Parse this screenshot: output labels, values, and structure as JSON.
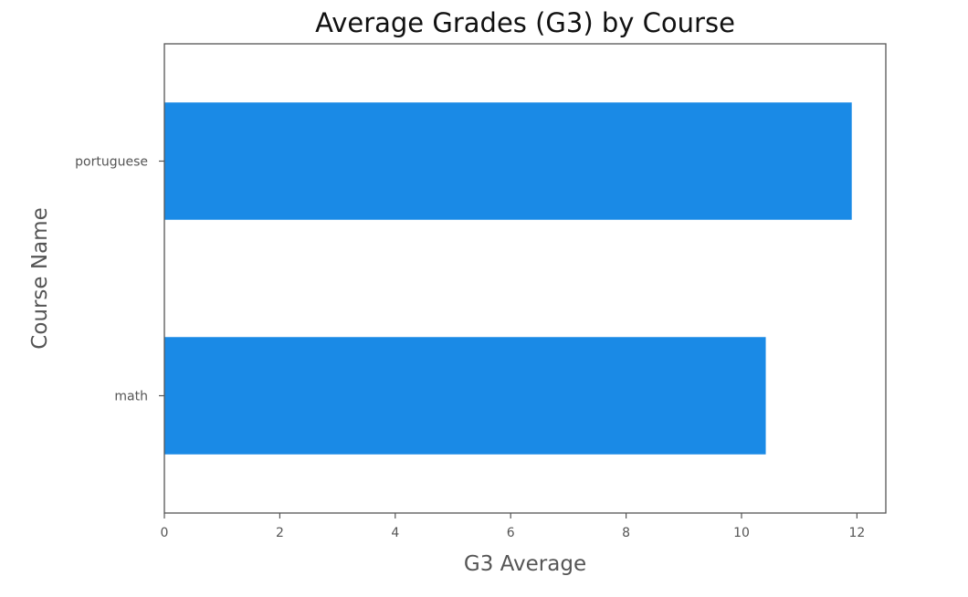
{
  "chart_data": {
    "type": "bar",
    "orientation": "horizontal",
    "title": "Average Grades (G3) by Course",
    "xlabel": "G3 Average",
    "ylabel": "Course Name",
    "categories": [
      "math",
      "portuguese"
    ],
    "values": [
      10.42,
      11.91
    ],
    "xlim": [
      0,
      12.5
    ],
    "xticks": [
      "0",
      "2",
      "4",
      "6",
      "8",
      "10",
      "12"
    ],
    "xtick_values": [
      0,
      2,
      4,
      6,
      8,
      10,
      12
    ],
    "bar_color": "#1a8ae6",
    "grid": false,
    "legend": "none"
  }
}
